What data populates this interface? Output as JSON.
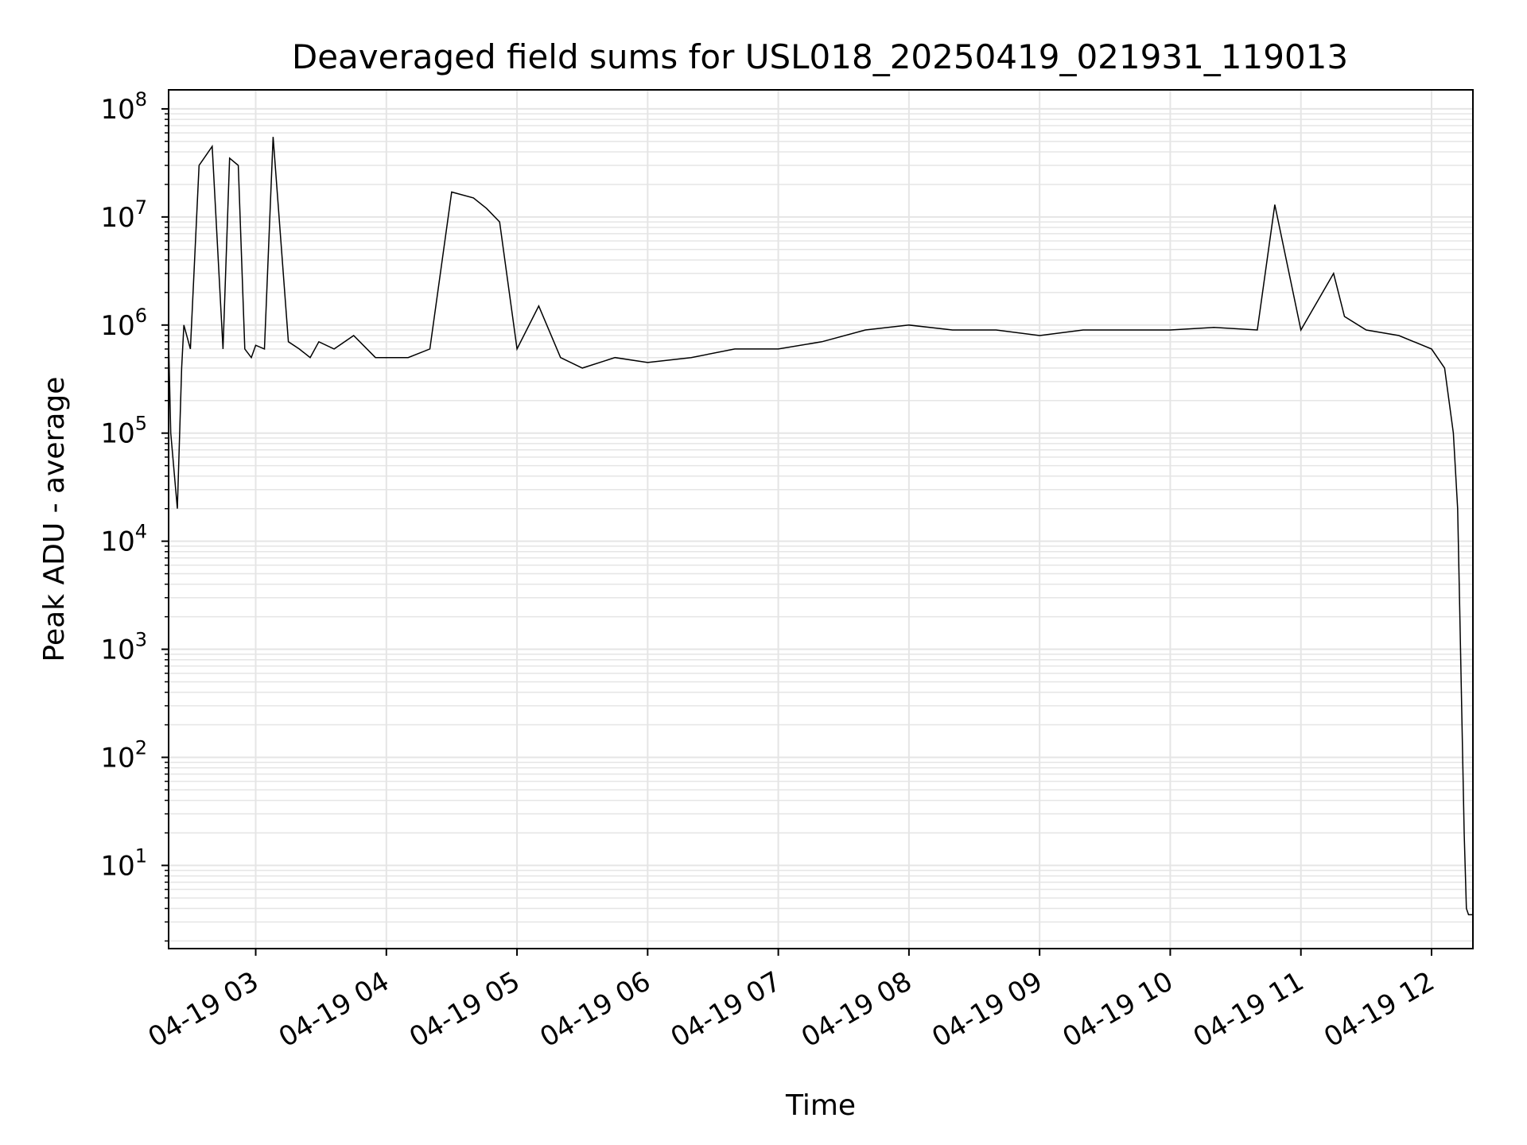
{
  "chart_data": {
    "type": "line",
    "title": "Deaveraged field sums for USL018_20250419_021931_119013",
    "xlabel": "Time",
    "ylabel": "Peak ADU - average",
    "y_scale": "log",
    "ylim": [
      1.7,
      150000000
    ],
    "xlim": [
      "2025-04-19 02:20",
      "2025-04-19 12:19"
    ],
    "grid": "on (major and minor)",
    "line_color": "#000000",
    "grid_color": "#e5e5e5",
    "x_ticks": [
      {
        "time": "2025-04-19 03:00",
        "label": "04-19 03"
      },
      {
        "time": "2025-04-19 04:00",
        "label": "04-19 04"
      },
      {
        "time": "2025-04-19 05:00",
        "label": "04-19 05"
      },
      {
        "time": "2025-04-19 06:00",
        "label": "04-19 06"
      },
      {
        "time": "2025-04-19 07:00",
        "label": "04-19 07"
      },
      {
        "time": "2025-04-19 08:00",
        "label": "04-19 08"
      },
      {
        "time": "2025-04-19 09:00",
        "label": "04-19 09"
      },
      {
        "time": "2025-04-19 10:00",
        "label": "04-19 10"
      },
      {
        "time": "2025-04-19 11:00",
        "label": "04-19 11"
      },
      {
        "time": "2025-04-19 12:00",
        "label": "04-19 12"
      }
    ],
    "y_ticks": [
      {
        "value": 10,
        "base": "10",
        "exp": "1"
      },
      {
        "value": 100,
        "base": "10",
        "exp": "2"
      },
      {
        "value": 1000,
        "base": "10",
        "exp": "3"
      },
      {
        "value": 10000,
        "base": "10",
        "exp": "4"
      },
      {
        "value": 100000,
        "base": "10",
        "exp": "5"
      },
      {
        "value": 1000000,
        "base": "10",
        "exp": "6"
      },
      {
        "value": 10000000,
        "base": "10",
        "exp": "7"
      },
      {
        "value": 100000000,
        "base": "10",
        "exp": "8"
      }
    ],
    "series": [
      {
        "x": [
          "2025-04-19 02:20",
          "2025-04-19 02:21",
          "2025-04-19 02:24",
          "2025-04-19 02:26",
          "2025-04-19 02:27",
          "2025-04-19 02:30",
          "2025-04-19 02:34",
          "2025-04-19 02:40",
          "2025-04-19 02:45",
          "2025-04-19 02:48",
          "2025-04-19 02:52",
          "2025-04-19 02:55",
          "2025-04-19 02:58",
          "2025-04-19 03:00",
          "2025-04-19 03:04",
          "2025-04-19 03:08",
          "2025-04-19 03:15",
          "2025-04-19 03:20",
          "2025-04-19 03:25",
          "2025-04-19 03:29",
          "2025-04-19 03:36",
          "2025-04-19 03:45",
          "2025-04-19 03:55",
          "2025-04-19 04:10",
          "2025-04-19 04:20",
          "2025-04-19 04:30",
          "2025-04-19 04:40",
          "2025-04-19 04:46",
          "2025-04-19 04:52",
          "2025-04-19 05:00",
          "2025-04-19 05:10",
          "2025-04-19 05:20",
          "2025-04-19 05:30",
          "2025-04-19 05:45",
          "2025-04-19 06:00",
          "2025-04-19 06:20",
          "2025-04-19 06:40",
          "2025-04-19 07:00",
          "2025-04-19 07:20",
          "2025-04-19 07:40",
          "2025-04-19 08:00",
          "2025-04-19 08:20",
          "2025-04-19 08:40",
          "2025-04-19 09:00",
          "2025-04-19 09:20",
          "2025-04-19 09:40",
          "2025-04-19 10:00",
          "2025-04-19 10:20",
          "2025-04-19 10:40",
          "2025-04-19 10:48",
          "2025-04-19 11:00",
          "2025-04-19 11:15",
          "2025-04-19 11:20",
          "2025-04-19 11:30",
          "2025-04-19 11:45",
          "2025-04-19 12:00",
          "2025-04-19 12:06",
          "2025-04-19 12:10",
          "2025-04-19 12:12",
          "2025-04-19 12:13",
          "2025-04-19 12:14",
          "2025-04-19 12:15",
          "2025-04-19 12:16",
          "2025-04-19 12:17",
          "2025-04-19 12:18",
          "2025-04-19 12:19"
        ],
        "y": [
          700000,
          100000,
          20000,
          400000,
          1000000,
          600000,
          30000000,
          45000000,
          600000,
          35000000,
          30000000,
          600000,
          500000,
          650000,
          600000,
          55000000,
          700000,
          600000,
          500000,
          700000,
          600000,
          800000,
          500000,
          500000,
          600000,
          17000000,
          15000000,
          12000000,
          9000000,
          600000,
          1500000,
          500000,
          400000,
          500000,
          450000,
          500000,
          600000,
          600000,
          700000,
          900000,
          1000000,
          900000,
          900000,
          800000,
          900000,
          900000,
          900000,
          950000,
          900000,
          13000000,
          900000,
          3000000,
          1200000,
          900000,
          800000,
          600000,
          400000,
          100000,
          20000,
          2000,
          200,
          20,
          4,
          3.5,
          3.5,
          3.5
        ]
      }
    ]
  }
}
